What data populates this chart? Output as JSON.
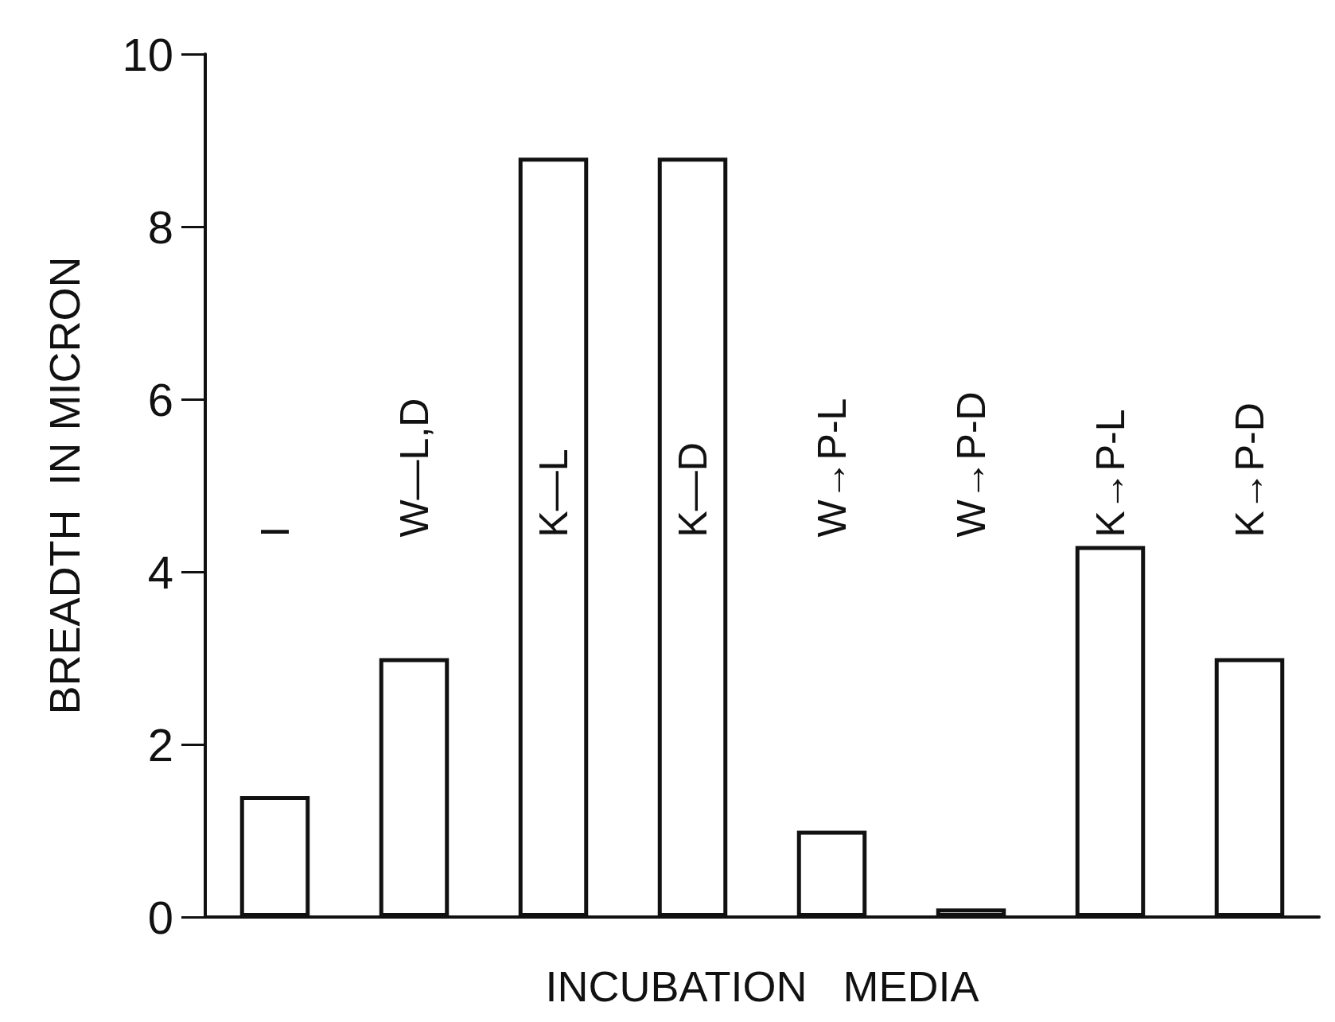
{
  "chart_data": {
    "type": "bar",
    "xlabel": "INCUBATION   MEDIA",
    "ylabel": "BREADTH  IN MICRON",
    "categories": [
      "I",
      "W—L,D",
      "K—L",
      "K—D",
      "W→P-L",
      "W→P-D",
      "K→P-L",
      "K→P-D"
    ],
    "values": [
      1.4,
      3.0,
      8.8,
      8.8,
      1.0,
      0.1,
      4.3,
      3.0
    ],
    "color": "#ffffff",
    "ylim": [
      0,
      10
    ],
    "yticks": [
      0,
      2,
      4,
      6,
      8,
      10
    ],
    "grid": false
  }
}
